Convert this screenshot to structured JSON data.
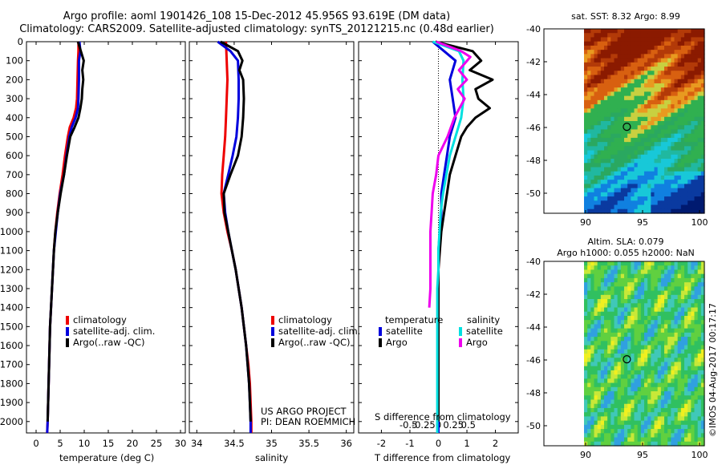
{
  "title_line1": "Argo profile: aoml 1901426_108 15-Dec-2012 45.956S 93.619E (DM data)",
  "title_line2": "Climatology: CARS2009. Satellite-adjusted climatology: synTS_20121215.nc (0.48d earlier)",
  "colors": {
    "climatology": "#ee0000",
    "satellite": "#0000dd",
    "argo": "#000000",
    "sat_salinity": "#00e0e0",
    "argo_salinity": "#ee00ee"
  },
  "depth_ticks": [
    "0",
    "100",
    "200",
    "300",
    "400",
    "500",
    "600",
    "700",
    "800",
    "900",
    "1000",
    "1100",
    "1200",
    "1300",
    "1400",
    "1500",
    "1600",
    "1700",
    "1800",
    "1900",
    "2000"
  ],
  "panels": {
    "temperature": {
      "xlabel": "temperature (deg C)",
      "xticks": [
        "0",
        "5",
        "10",
        "15",
        "20",
        "25",
        "30"
      ]
    },
    "salinity": {
      "xlabel": "salinity",
      "xticks": [
        "34",
        "34.5",
        "35",
        "35.5",
        "36"
      ]
    },
    "difference": {
      "xlabel": "T difference from climatology",
      "xticks": [
        "-2",
        "-1",
        "0",
        "1",
        "2"
      ],
      "xlabel_top": "S difference from climatology",
      "xticks_top": [
        "-0.5",
        "-0.25",
        "0",
        "0.25",
        "0.5"
      ]
    }
  },
  "legend_ts": [
    "climatology",
    "satellite-adj. clim.",
    "Argo(..raw -QC)"
  ],
  "legend_diff": {
    "col1_head": "temperature",
    "col2_head": "salinity",
    "sat": "satellite",
    "argo": "Argo"
  },
  "signature": {
    "line1": "US ARGO PROJECT",
    "line2": "PI: DEAN ROEMMICH"
  },
  "maps": {
    "sst_title": "sat. SST: 8.32 Argo: 8.99",
    "sla_title1": "Altim. SLA: 0.079",
    "sla_title2": "Argo h1000: 0.055 h2000: NaN",
    "yticks": [
      "-40",
      "-42",
      "-44",
      "-46",
      "-48",
      "-50"
    ],
    "xticks": [
      "90",
      "95",
      "100"
    ]
  },
  "credit": "©IMOS 04-Aug-2017 00:17:17",
  "chart_data": [
    {
      "type": "line",
      "xlabel": "temperature (deg C)",
      "ylabel": "",
      "xlim": [
        -2,
        31
      ],
      "ylim": [
        2060,
        0
      ],
      "series": [
        {
          "name": "climatology",
          "points": [
            [
              8.8,
              0
            ],
            [
              8.8,
              50
            ],
            [
              8.7,
              100
            ],
            [
              8.6,
              200
            ],
            [
              8.5,
              300
            ],
            [
              8.3,
              350
            ],
            [
              7.8,
              400
            ],
            [
              7.0,
              450
            ],
            [
              6.6,
              500
            ],
            [
              6.0,
              600
            ],
            [
              5.5,
              700
            ],
            [
              4.9,
              800
            ],
            [
              4.4,
              900
            ],
            [
              4.0,
              1000
            ],
            [
              3.7,
              1100
            ],
            [
              3.5,
              1200
            ],
            [
              3.3,
              1300
            ],
            [
              3.1,
              1400
            ],
            [
              2.9,
              1500
            ],
            [
              2.8,
              1600
            ],
            [
              2.7,
              1700
            ],
            [
              2.6,
              1800
            ],
            [
              2.5,
              1900
            ],
            [
              2.4,
              2000
            ],
            [
              2.3,
              2060
            ]
          ]
        },
        {
          "name": "satellite-adj. clim.",
          "points": [
            [
              9.0,
              0
            ],
            [
              9.2,
              50
            ],
            [
              8.9,
              100
            ],
            [
              8.9,
              200
            ],
            [
              8.8,
              300
            ],
            [
              8.7,
              350
            ],
            [
              8.2,
              400
            ],
            [
              7.4,
              450
            ],
            [
              6.9,
              500
            ],
            [
              6.3,
              600
            ],
            [
              5.8,
              700
            ],
            [
              5.0,
              800
            ],
            [
              4.5,
              900
            ],
            [
              4.1,
              1000
            ],
            [
              3.7,
              1100
            ],
            [
              3.5,
              1200
            ],
            [
              3.3,
              1300
            ],
            [
              3.1,
              1400
            ],
            [
              2.9,
              1500
            ],
            [
              2.8,
              1600
            ],
            [
              2.7,
              1700
            ],
            [
              2.6,
              1800
            ],
            [
              2.5,
              1900
            ],
            [
              2.4,
              2000
            ],
            [
              2.3,
              2060
            ]
          ]
        },
        {
          "name": "Argo(..raw -QC)",
          "points": [
            [
              8.7,
              0
            ],
            [
              9.3,
              50
            ],
            [
              9.9,
              100
            ],
            [
              9.6,
              150
            ],
            [
              9.8,
              200
            ],
            [
              9.6,
              250
            ],
            [
              9.5,
              300
            ],
            [
              9.2,
              350
            ],
            [
              8.8,
              400
            ],
            [
              8.0,
              450
            ],
            [
              7.1,
              500
            ],
            [
              6.4,
              600
            ],
            [
              5.8,
              700
            ],
            [
              5.1,
              800
            ],
            [
              4.5,
              900
            ],
            [
              4.0,
              1000
            ],
            [
              3.7,
              1100
            ],
            [
              3.5,
              1200
            ],
            [
              3.3,
              1300
            ],
            [
              3.1,
              1400
            ],
            [
              2.9,
              1500
            ],
            [
              2.8,
              1600
            ],
            [
              2.7,
              1700
            ],
            [
              2.6,
              1800
            ],
            [
              2.5,
              1900
            ],
            [
              2.4,
              2000
            ]
          ]
        }
      ]
    },
    {
      "type": "line",
      "xlabel": "salinity",
      "ylabel": "",
      "xlim": [
        33.9,
        36.1
      ],
      "ylim": [
        2060,
        0
      ],
      "series": [
        {
          "name": "climatology",
          "points": [
            [
              34.39,
              0
            ],
            [
              34.4,
              100
            ],
            [
              34.41,
              200
            ],
            [
              34.4,
              300
            ],
            [
              34.39,
              400
            ],
            [
              34.38,
              500
            ],
            [
              34.36,
              600
            ],
            [
              34.34,
              700
            ],
            [
              34.33,
              800
            ],
            [
              34.36,
              900
            ],
            [
              34.41,
              1000
            ],
            [
              34.47,
              1100
            ],
            [
              34.52,
              1200
            ],
            [
              34.56,
              1300
            ],
            [
              34.6,
              1400
            ],
            [
              34.63,
              1500
            ],
            [
              34.66,
              1600
            ],
            [
              34.69,
              1700
            ],
            [
              34.71,
              1800
            ],
            [
              34.72,
              1900
            ],
            [
              34.73,
              2000
            ],
            [
              34.73,
              2060
            ]
          ]
        },
        {
          "name": "satellite-adj. clim.",
          "points": [
            [
              34.28,
              0
            ],
            [
              34.45,
              50
            ],
            [
              34.55,
              100
            ],
            [
              34.56,
              200
            ],
            [
              34.56,
              300
            ],
            [
              34.55,
              400
            ],
            [
              34.53,
              500
            ],
            [
              34.48,
              600
            ],
            [
              34.42,
              700
            ],
            [
              34.36,
              800
            ],
            [
              34.38,
              900
            ],
            [
              34.42,
              1000
            ],
            [
              34.47,
              1100
            ],
            [
              34.52,
              1200
            ],
            [
              34.56,
              1300
            ],
            [
              34.6,
              1400
            ],
            [
              34.63,
              1500
            ],
            [
              34.66,
              1600
            ],
            [
              34.68,
              1700
            ],
            [
              34.7,
              1800
            ],
            [
              34.71,
              1900
            ],
            [
              34.72,
              2000
            ],
            [
              34.72,
              2060
            ]
          ]
        },
        {
          "name": "Argo(..raw -QC)",
          "points": [
            [
              34.32,
              0
            ],
            [
              34.55,
              50
            ],
            [
              34.61,
              100
            ],
            [
              34.57,
              150
            ],
            [
              34.62,
              200
            ],
            [
              34.63,
              300
            ],
            [
              34.62,
              400
            ],
            [
              34.6,
              500
            ],
            [
              34.55,
              600
            ],
            [
              34.45,
              700
            ],
            [
              34.36,
              800
            ],
            [
              34.37,
              900
            ],
            [
              34.42,
              1000
            ],
            [
              34.47,
              1100
            ],
            [
              34.52,
              1200
            ],
            [
              34.56,
              1300
            ],
            [
              34.6,
              1400
            ],
            [
              34.63,
              1500
            ],
            [
              34.66,
              1600
            ],
            [
              34.68,
              1700
            ],
            [
              34.7,
              1800
            ],
            [
              34.71,
              1900
            ],
            [
              34.72,
              2000
            ]
          ]
        }
      ]
    },
    {
      "type": "line",
      "xlabel": "T difference from climatology",
      "ylabel": "",
      "xlim": [
        -2.8,
        2.8
      ],
      "ylim": [
        2060,
        0
      ],
      "series": [
        {
          "name": "temperature satellite",
          "points": [
            [
              -0.2,
              0
            ],
            [
              0.2,
              50
            ],
            [
              0.6,
              100
            ],
            [
              0.4,
              200
            ],
            [
              0.5,
              300
            ],
            [
              0.6,
              400
            ],
            [
              0.4,
              500
            ],
            [
              0.3,
              600
            ],
            [
              0.2,
              700
            ],
            [
              0.1,
              800
            ],
            [
              0.1,
              900
            ],
            [
              0.05,
              1000
            ],
            [
              0.0,
              1100
            ],
            [
              0.0,
              1200
            ],
            [
              0.0,
              1300
            ],
            [
              0.0,
              1400
            ],
            [
              0.0,
              1500
            ],
            [
              0.0,
              1600
            ],
            [
              0.0,
              1700
            ],
            [
              0.0,
              1800
            ],
            [
              0.0,
              1900
            ],
            [
              0.0,
              2000
            ],
            [
              0.0,
              2060
            ]
          ]
        },
        {
          "name": "temperature Argo",
          "points": [
            [
              -0.1,
              0
            ],
            [
              1.2,
              50
            ],
            [
              1.5,
              100
            ],
            [
              1.1,
              150
            ],
            [
              1.9,
              200
            ],
            [
              1.3,
              250
            ],
            [
              1.4,
              300
            ],
            [
              1.8,
              350
            ],
            [
              1.3,
              400
            ],
            [
              1.0,
              450
            ],
            [
              0.8,
              500
            ],
            [
              0.6,
              600
            ],
            [
              0.4,
              700
            ],
            [
              0.3,
              800
            ],
            [
              0.2,
              900
            ],
            [
              0.1,
              1000
            ],
            [
              0.05,
              1100
            ],
            [
              0.0,
              1200
            ],
            [
              0.0,
              1300
            ],
            [
              0.0,
              1400
            ],
            [
              0.0,
              1500
            ],
            [
              0.0,
              1600
            ],
            [
              0.0,
              1700
            ],
            [
              0.0,
              1800
            ],
            [
              0.0,
              1900
            ],
            [
              0.0,
              2000
            ]
          ]
        },
        {
          "name": "salinity satellite",
          "points": [
            [
              -0.05,
              0
            ],
            [
              0.18,
              50
            ],
            [
              0.22,
              100
            ],
            [
              0.21,
              200
            ],
            [
              0.22,
              300
            ],
            [
              0.2,
              400
            ],
            [
              0.15,
              500
            ],
            [
              0.1,
              600
            ],
            [
              0.07,
              700
            ],
            [
              0.04,
              800
            ],
            [
              0.02,
              900
            ],
            [
              0.01,
              1000
            ],
            [
              0.0,
              1100
            ],
            [
              0.0,
              1200
            ],
            [
              -0.01,
              1300
            ],
            [
              -0.01,
              1400
            ],
            [
              -0.01,
              1500
            ],
            [
              -0.01,
              1600
            ],
            [
              -0.01,
              1700
            ],
            [
              -0.01,
              1800
            ],
            [
              -0.01,
              1900
            ],
            [
              -0.01,
              2000
            ],
            [
              -0.01,
              2060
            ]
          ]
        },
        {
          "name": "salinity Argo",
          "points": [
            [
              -0.02,
              0
            ],
            [
              0.2,
              50
            ],
            [
              0.28,
              80
            ],
            [
              0.18,
              150
            ],
            [
              0.25,
              200
            ],
            [
              0.17,
              250
            ],
            [
              0.23,
              300
            ],
            [
              0.14,
              400
            ],
            [
              0.08,
              500
            ],
            [
              0.0,
              600
            ],
            [
              -0.02,
              700
            ],
            [
              -0.05,
              800
            ],
            [
              -0.06,
              900
            ],
            [
              -0.07,
              1000
            ],
            [
              -0.07,
              1100
            ],
            [
              -0.07,
              1200
            ],
            [
              -0.07,
              1300
            ],
            [
              -0.08,
              1400
            ]
          ]
        }
      ]
    }
  ]
}
